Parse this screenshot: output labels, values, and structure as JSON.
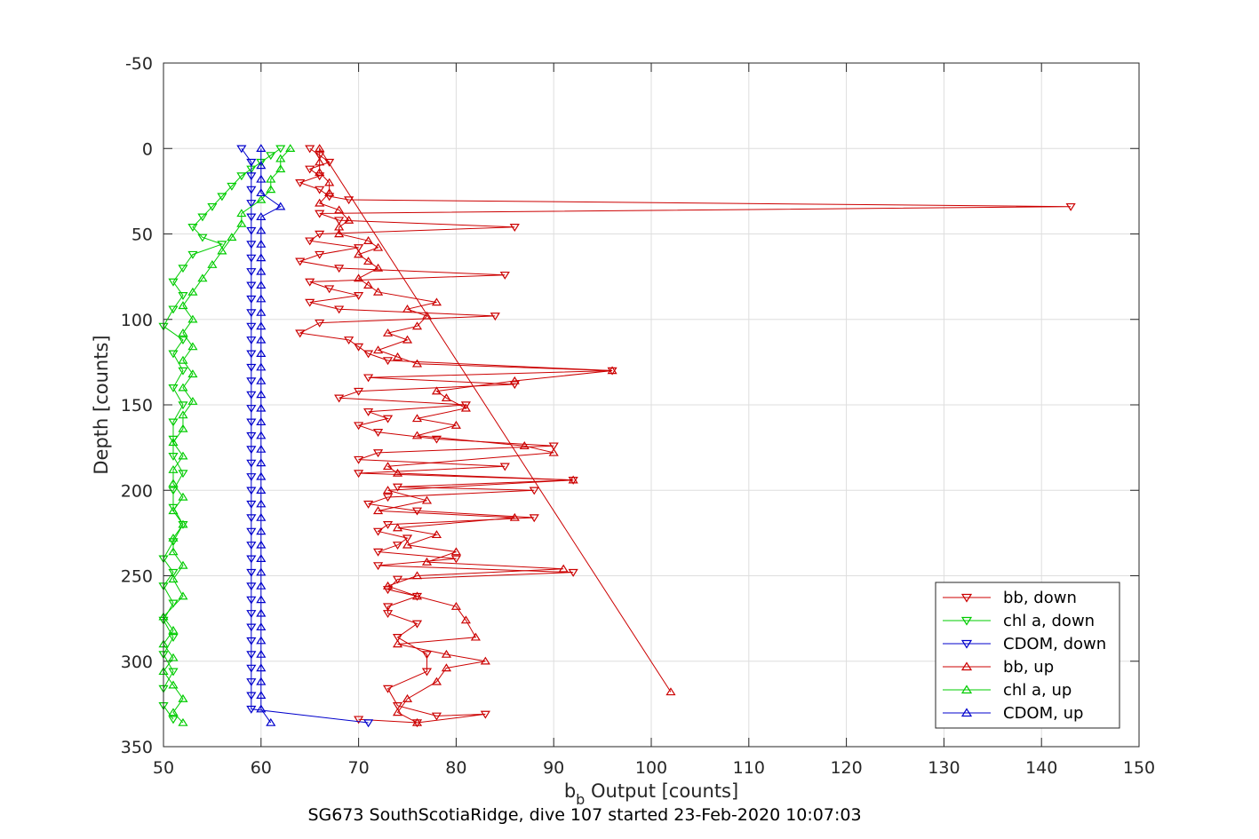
{
  "chart_data": {
    "type": "scatter",
    "xlabel": "b",
    "xlabel_sub": "b",
    "xlabel_rest": " Output [counts]",
    "ylabel": "Depth [counts]",
    "caption": "SG673 SouthScotiaRidge, dive 107 started 23-Feb-2020 10:07:03",
    "xlim": [
      50,
      150
    ],
    "ylim": [
      -50,
      350
    ],
    "y_reversed": true,
    "grid": true,
    "legend_position": "bottom-right",
    "xticks": [
      50,
      60,
      70,
      80,
      90,
      100,
      110,
      120,
      130,
      140,
      150
    ],
    "yticks": [
      -50,
      0,
      50,
      100,
      150,
      200,
      250,
      300,
      350
    ],
    "series": [
      {
        "name": "bb, down",
        "color": "#cc0000",
        "marker": "triangle-down",
        "line": true,
        "points": [
          [
            65,
            0
          ],
          [
            66,
            4
          ],
          [
            67,
            8
          ],
          [
            65,
            12
          ],
          [
            66,
            16
          ],
          [
            64,
            20
          ],
          [
            66,
            24
          ],
          [
            67,
            28
          ],
          [
            69,
            30
          ],
          [
            143,
            34
          ],
          [
            66,
            38
          ],
          [
            68,
            42
          ],
          [
            86,
            46
          ],
          [
            66,
            50
          ],
          [
            65,
            54
          ],
          [
            70,
            58
          ],
          [
            66,
            62
          ],
          [
            64,
            66
          ],
          [
            68,
            70
          ],
          [
            85,
            74
          ],
          [
            65,
            78
          ],
          [
            67,
            82
          ],
          [
            70,
            86
          ],
          [
            65,
            90
          ],
          [
            68,
            94
          ],
          [
            84,
            98
          ],
          [
            66,
            102
          ],
          [
            64,
            108
          ],
          [
            69,
            112
          ],
          [
            70,
            116
          ],
          [
            71,
            120
          ],
          [
            73,
            124
          ],
          [
            96,
            130
          ],
          [
            71,
            134
          ],
          [
            86,
            138
          ],
          [
            70,
            142
          ],
          [
            68,
            146
          ],
          [
            81,
            150
          ],
          [
            71,
            154
          ],
          [
            73,
            158
          ],
          [
            70,
            162
          ],
          [
            72,
            166
          ],
          [
            78,
            170
          ],
          [
            90,
            174
          ],
          [
            72,
            178
          ],
          [
            70,
            182
          ],
          [
            85,
            186
          ],
          [
            70,
            190
          ],
          [
            92,
            194
          ],
          [
            74,
            198
          ],
          [
            88,
            200
          ],
          [
            73,
            204
          ],
          [
            71,
            208
          ],
          [
            76,
            212
          ],
          [
            88,
            216
          ],
          [
            73,
            220
          ],
          [
            72,
            224
          ],
          [
            75,
            228
          ],
          [
            74,
            232
          ],
          [
            72,
            236
          ],
          [
            80,
            240
          ],
          [
            72,
            244
          ],
          [
            92,
            248
          ],
          [
            74,
            252
          ],
          [
            73,
            258
          ],
          [
            76,
            262
          ],
          [
            73,
            268
          ],
          [
            73,
            272
          ],
          [
            76,
            278
          ],
          [
            74,
            286
          ],
          [
            77,
            296
          ],
          [
            77,
            306
          ],
          [
            73,
            316
          ],
          [
            74,
            326
          ],
          [
            78,
            332
          ],
          [
            83,
            331
          ],
          [
            76,
            336
          ],
          [
            70,
            334
          ]
        ]
      },
      {
        "name": "chl a, down",
        "color": "#00cc00",
        "marker": "triangle-down",
        "line": true,
        "points": [
          [
            62,
            0
          ],
          [
            61,
            4
          ],
          [
            60,
            8
          ],
          [
            59,
            12
          ],
          [
            58,
            16
          ],
          [
            57,
            22
          ],
          [
            56,
            28
          ],
          [
            55,
            34
          ],
          [
            54,
            40
          ],
          [
            53,
            46
          ],
          [
            54,
            52
          ],
          [
            56,
            56
          ],
          [
            53,
            62
          ],
          [
            52,
            70
          ],
          [
            51,
            78
          ],
          [
            52,
            86
          ],
          [
            51,
            94
          ],
          [
            50,
            104
          ],
          [
            52,
            112
          ],
          [
            51,
            120
          ],
          [
            52,
            130
          ],
          [
            51,
            140
          ],
          [
            52,
            150
          ],
          [
            51,
            160
          ],
          [
            51,
            170
          ],
          [
            51,
            180
          ],
          [
            52,
            190
          ],
          [
            51,
            200
          ],
          [
            51,
            210
          ],
          [
            52,
            220
          ],
          [
            51,
            230
          ],
          [
            50,
            240
          ],
          [
            51,
            248
          ],
          [
            50,
            256
          ],
          [
            51,
            266
          ],
          [
            50,
            276
          ],
          [
            51,
            286
          ],
          [
            50,
            296
          ],
          [
            51,
            306
          ],
          [
            50,
            316
          ],
          [
            50,
            326
          ],
          [
            51,
            334
          ]
        ]
      },
      {
        "name": "CDOM, down",
        "color": "#0000cc",
        "marker": "triangle-down",
        "line": true,
        "points": [
          [
            58,
            0
          ],
          [
            59,
            8
          ],
          [
            59,
            16
          ],
          [
            59,
            24
          ],
          [
            59,
            32
          ],
          [
            59,
            40
          ],
          [
            59,
            48
          ],
          [
            59,
            56
          ],
          [
            59,
            64
          ],
          [
            59,
            72
          ],
          [
            59,
            80
          ],
          [
            59,
            88
          ],
          [
            59,
            96
          ],
          [
            59,
            104
          ],
          [
            59,
            112
          ],
          [
            59,
            120
          ],
          [
            59,
            128
          ],
          [
            59,
            136
          ],
          [
            59,
            144
          ],
          [
            59,
            152
          ],
          [
            59,
            160
          ],
          [
            59,
            168
          ],
          [
            59,
            176
          ],
          [
            59,
            184
          ],
          [
            59,
            192
          ],
          [
            59,
            200
          ],
          [
            59,
            208
          ],
          [
            59,
            216
          ],
          [
            59,
            224
          ],
          [
            59,
            232
          ],
          [
            59,
            240
          ],
          [
            59,
            248
          ],
          [
            59,
            256
          ],
          [
            59,
            264
          ],
          [
            59,
            272
          ],
          [
            59,
            280
          ],
          [
            59,
            288
          ],
          [
            59,
            296
          ],
          [
            59,
            304
          ],
          [
            59,
            312
          ],
          [
            59,
            320
          ],
          [
            59,
            328
          ],
          [
            71,
            336
          ]
        ]
      },
      {
        "name": "bb, up",
        "color": "#cc0000",
        "marker": "triangle-up",
        "line": true,
        "points": [
          [
            76,
            336
          ],
          [
            74,
            330
          ],
          [
            75,
            322
          ],
          [
            78,
            312
          ],
          [
            79,
            304
          ],
          [
            83,
            300
          ],
          [
            79,
            296
          ],
          [
            74,
            290
          ],
          [
            82,
            286
          ],
          [
            81,
            276
          ],
          [
            80,
            268
          ],
          [
            76,
            262
          ],
          [
            73,
            256
          ],
          [
            76,
            250
          ],
          [
            91,
            246
          ],
          [
            77,
            242
          ],
          [
            80,
            236
          ],
          [
            75,
            232
          ],
          [
            78,
            226
          ],
          [
            74,
            222
          ],
          [
            86,
            216
          ],
          [
            72,
            212
          ],
          [
            77,
            206
          ],
          [
            73,
            200
          ],
          [
            92,
            194
          ],
          [
            74,
            190
          ],
          [
            73,
            186
          ],
          [
            90,
            178
          ],
          [
            87,
            174
          ],
          [
            76,
            168
          ],
          [
            80,
            162
          ],
          [
            76,
            158
          ],
          [
            81,
            152
          ],
          [
            79,
            146
          ],
          [
            78,
            142
          ],
          [
            86,
            136
          ],
          [
            96,
            130
          ],
          [
            76,
            126
          ],
          [
            74,
            122
          ],
          [
            72,
            118
          ],
          [
            75,
            112
          ],
          [
            73,
            108
          ],
          [
            76,
            104
          ],
          [
            77,
            98
          ],
          [
            75,
            94
          ],
          [
            78,
            90
          ],
          [
            72,
            84
          ],
          [
            71,
            80
          ],
          [
            70,
            76
          ],
          [
            72,
            70
          ],
          [
            71,
            66
          ],
          [
            70,
            62
          ],
          [
            72,
            58
          ],
          [
            71,
            54
          ],
          [
            68,
            50
          ],
          [
            68,
            46
          ],
          [
            69,
            42
          ],
          [
            68,
            36
          ],
          [
            66,
            32
          ],
          [
            67,
            26
          ],
          [
            67,
            20
          ],
          [
            66,
            14
          ],
          [
            66,
            8
          ],
          [
            66,
            0
          ],
          [
            102,
            318
          ]
        ]
      },
      {
        "name": "chl a, up",
        "color": "#00cc00",
        "marker": "triangle-up",
        "line": true,
        "points": [
          [
            52,
            336
          ],
          [
            51,
            330
          ],
          [
            52,
            322
          ],
          [
            51,
            314
          ],
          [
            50,
            306
          ],
          [
            51,
            298
          ],
          [
            50,
            290
          ],
          [
            51,
            282
          ],
          [
            50,
            274
          ],
          [
            52,
            262
          ],
          [
            51,
            252
          ],
          [
            52,
            244
          ],
          [
            51,
            236
          ],
          [
            51,
            228
          ],
          [
            52,
            220
          ],
          [
            51,
            212
          ],
          [
            52,
            204
          ],
          [
            51,
            196
          ],
          [
            51,
            188
          ],
          [
            52,
            180
          ],
          [
            51,
            172
          ],
          [
            52,
            164
          ],
          [
            52,
            156
          ],
          [
            53,
            148
          ],
          [
            52,
            140
          ],
          [
            53,
            132
          ],
          [
            52,
            124
          ],
          [
            53,
            116
          ],
          [
            52,
            108
          ],
          [
            53,
            100
          ],
          [
            52,
            92
          ],
          [
            53,
            84
          ],
          [
            54,
            76
          ],
          [
            55,
            68
          ],
          [
            56,
            60
          ],
          [
            57,
            52
          ],
          [
            58,
            44
          ],
          [
            58,
            38
          ],
          [
            60,
            30
          ],
          [
            61,
            24
          ],
          [
            61,
            18
          ],
          [
            62,
            12
          ],
          [
            62,
            6
          ],
          [
            63,
            0
          ]
        ]
      },
      {
        "name": "CDOM, up",
        "color": "#0000cc",
        "marker": "triangle-up",
        "line": true,
        "points": [
          [
            61,
            336
          ],
          [
            60,
            328
          ],
          [
            60,
            320
          ],
          [
            60,
            312
          ],
          [
            60,
            304
          ],
          [
            60,
            296
          ],
          [
            60,
            288
          ],
          [
            60,
            280
          ],
          [
            60,
            272
          ],
          [
            60,
            264
          ],
          [
            60,
            256
          ],
          [
            60,
            248
          ],
          [
            60,
            240
          ],
          [
            60,
            232
          ],
          [
            60,
            224
          ],
          [
            60,
            216
          ],
          [
            60,
            208
          ],
          [
            60,
            200
          ],
          [
            60,
            192
          ],
          [
            60,
            184
          ],
          [
            60,
            176
          ],
          [
            60,
            168
          ],
          [
            60,
            160
          ],
          [
            60,
            152
          ],
          [
            60,
            144
          ],
          [
            60,
            136
          ],
          [
            60,
            128
          ],
          [
            60,
            120
          ],
          [
            60,
            112
          ],
          [
            60,
            104
          ],
          [
            60,
            96
          ],
          [
            60,
            88
          ],
          [
            60,
            80
          ],
          [
            60,
            72
          ],
          [
            60,
            64
          ],
          [
            60,
            56
          ],
          [
            60,
            48
          ],
          [
            60,
            40
          ],
          [
            62,
            34
          ],
          [
            60,
            26
          ],
          [
            60,
            18
          ],
          [
            60,
            10
          ],
          [
            60,
            0
          ]
        ]
      }
    ]
  }
}
